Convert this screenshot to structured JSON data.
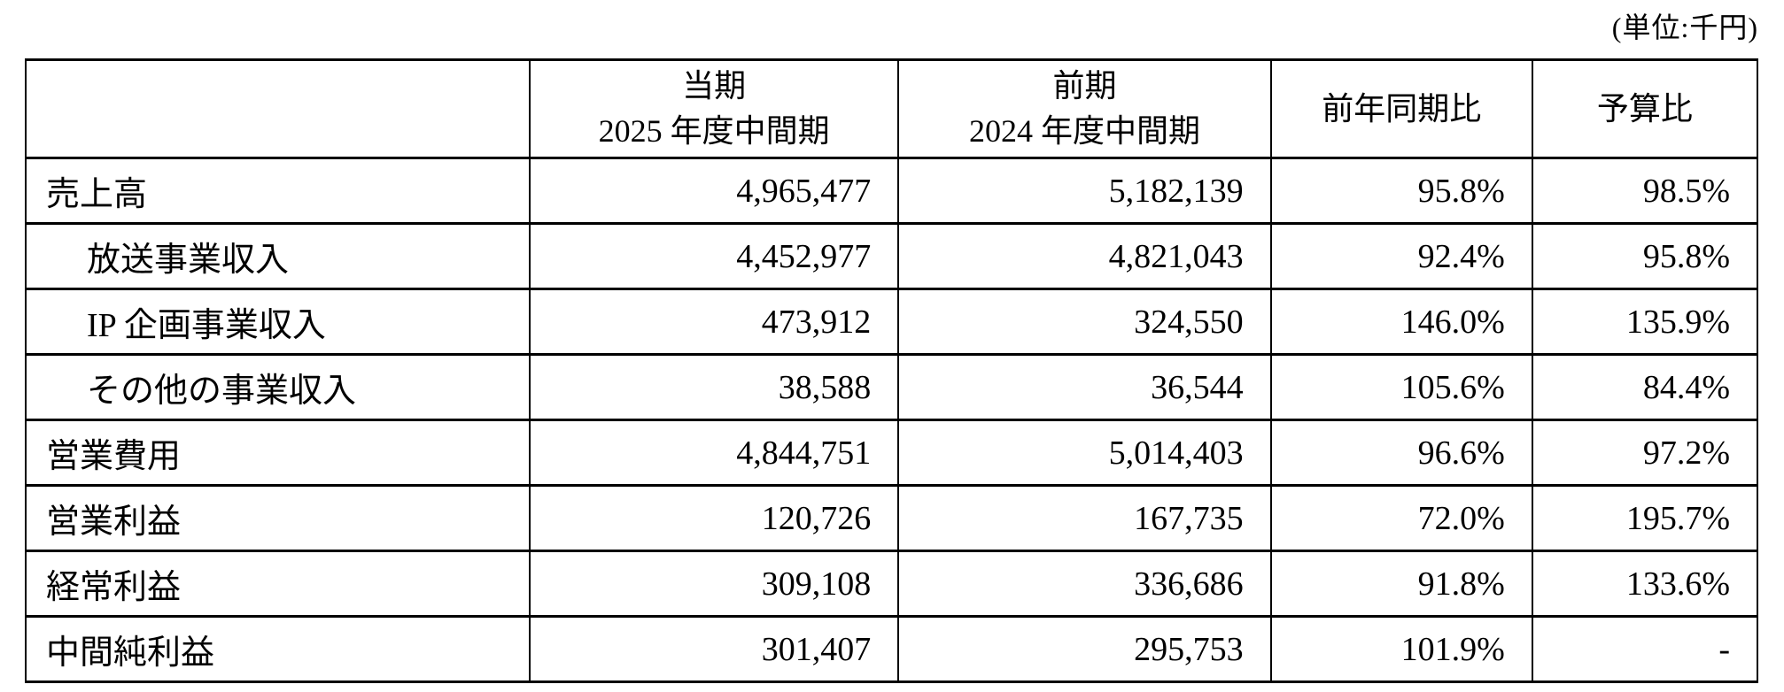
{
  "unit_label": "(単位:千円)",
  "table": {
    "columns": [
      {
        "id": "item",
        "line1": "",
        "line2": ""
      },
      {
        "id": "current",
        "line1": "当期",
        "line2": "2025 年度中間期"
      },
      {
        "id": "previous",
        "line1": "前期",
        "line2": "2024 年度中間期"
      },
      {
        "id": "yoy",
        "line1": "前年同期比",
        "line2": ""
      },
      {
        "id": "budget",
        "line1": "予算比",
        "line2": ""
      }
    ],
    "rows": [
      {
        "label": "売上高",
        "indent": false,
        "current": "4,965,477",
        "previous": "5,182,139",
        "yoy": "95.8%",
        "budget": "98.5%"
      },
      {
        "label": "放送事業収入",
        "indent": true,
        "current": "4,452,977",
        "previous": "4,821,043",
        "yoy": "92.4%",
        "budget": "95.8%"
      },
      {
        "label": "IP 企画事業収入",
        "indent": true,
        "current": "473,912",
        "previous": "324,550",
        "yoy": "146.0%",
        "budget": "135.9%"
      },
      {
        "label": "その他の事業収入",
        "indent": true,
        "current": "38,588",
        "previous": "36,544",
        "yoy": "105.6%",
        "budget": "84.4%"
      },
      {
        "label": "営業費用",
        "indent": false,
        "current": "4,844,751",
        "previous": "5,014,403",
        "yoy": "96.6%",
        "budget": "97.2%"
      },
      {
        "label": "営業利益",
        "indent": false,
        "current": "120,726",
        "previous": "167,735",
        "yoy": "72.0%",
        "budget": "195.7%"
      },
      {
        "label": "経常利益",
        "indent": false,
        "current": "309,108",
        "previous": "336,686",
        "yoy": "91.8%",
        "budget": "133.6%"
      },
      {
        "label": "中間純利益",
        "indent": false,
        "current": "301,407",
        "previous": "295,753",
        "yoy": "101.9%",
        "budget": "-"
      }
    ]
  },
  "colors": {
    "text": "#000000",
    "background": "#ffffff",
    "border": "#000000"
  }
}
